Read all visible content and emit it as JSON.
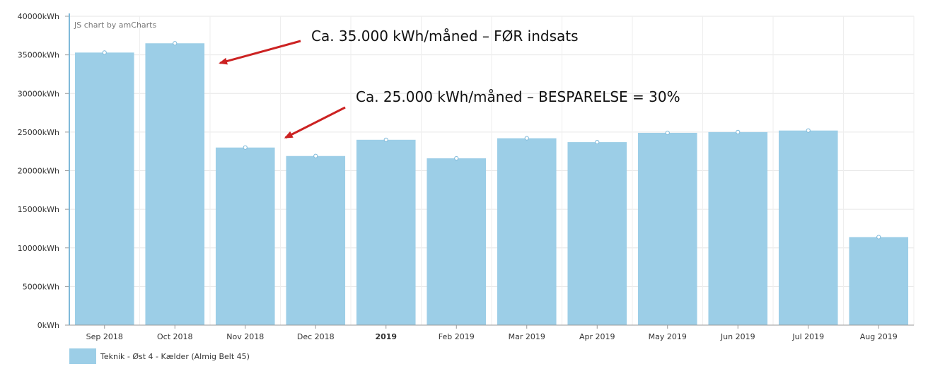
{
  "chart_data": {
    "type": "bar",
    "categories": [
      "Sep 2018",
      "Oct 2018",
      "Nov 2018",
      "Dec 2018",
      "2019",
      "Feb 2019",
      "Mar 2019",
      "Apr 2019",
      "May 2019",
      "Jun 2019",
      "Jul 2019",
      "Aug 2019"
    ],
    "bold_categories": [
      "2019"
    ],
    "series": [
      {
        "name": "Teknik - Øst 4 - Kælder (Almig Belt 45)",
        "color": "#9ccee7",
        "values": [
          35300,
          36500,
          23000,
          21900,
          24000,
          21600,
          24200,
          23700,
          24900,
          25000,
          25200,
          11400
        ]
      }
    ],
    "ylim": [
      0,
      40000
    ],
    "yticks": [
      0,
      5000,
      10000,
      15000,
      20000,
      25000,
      30000,
      35000,
      40000
    ],
    "ytick_labels": [
      "0kWh",
      "5000kWh",
      "10000kWh",
      "15000kWh",
      "20000kWh",
      "25000kWh",
      "30000kWh",
      "35000kWh",
      "40000kWh"
    ],
    "grid": true,
    "legend_position": "bottom-left",
    "credit": "JS chart by amCharts",
    "annotations": [
      {
        "text": "Ca. 35.000 kWh/måned – FØR indsats",
        "arrow_to_category": "Oct 2018",
        "color": "#cc2222"
      },
      {
        "text": "Ca. 25.000 kWh/måned – BESPARELSE = 30%",
        "arrow_to_category": "Nov 2018",
        "color": "#cc2222"
      }
    ]
  }
}
